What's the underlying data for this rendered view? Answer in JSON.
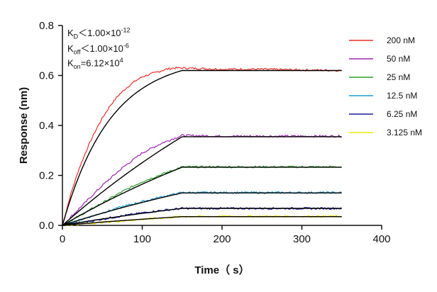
{
  "chart_data": {
    "type": "line",
    "xlabel": "Time（ s）",
    "ylabel": "Response (nm)",
    "xlim": [
      0,
      400
    ],
    "ylim": [
      0,
      0.8
    ],
    "x_ticks": [
      0,
      100,
      200,
      300,
      400
    ],
    "y_ticks": [
      0.0,
      0.2,
      0.4,
      0.6,
      0.8
    ],
    "x_tick_labels": [
      "0",
      "100",
      "200",
      "300",
      "400"
    ],
    "y_tick_labels": [
      "0.0",
      "0.2",
      "0.4",
      "0.6",
      "0.8"
    ],
    "legend_position": "right",
    "grid": false,
    "association_end_s": 150,
    "end_time_s": 350,
    "fit_color": "#000000",
    "series": [
      {
        "name": "200 nM",
        "color": "#e8302a",
        "plateau": 0.625,
        "fit_at_150s": 0.62,
        "points": [
          [
            0,
            0
          ],
          [
            10,
            0.12
          ],
          [
            20,
            0.22
          ],
          [
            30,
            0.3
          ],
          [
            40,
            0.37
          ],
          [
            50,
            0.43
          ],
          [
            60,
            0.48
          ],
          [
            70,
            0.52
          ],
          [
            80,
            0.55
          ],
          [
            90,
            0.575
          ],
          [
            100,
            0.595
          ],
          [
            110,
            0.605
          ],
          [
            120,
            0.615
          ],
          [
            130,
            0.625
          ],
          [
            140,
            0.63
          ],
          [
            150,
            0.63
          ],
          [
            200,
            0.625
          ],
          [
            250,
            0.625
          ],
          [
            300,
            0.622
          ],
          [
            350,
            0.62
          ]
        ]
      },
      {
        "name": "50 nM",
        "color": "#9b27b0",
        "plateau": 0.357,
        "fit_at_150s": 0.355,
        "points": [
          [
            0,
            0
          ],
          [
            25,
            0.08
          ],
          [
            50,
            0.16
          ],
          [
            75,
            0.23
          ],
          [
            100,
            0.29
          ],
          [
            125,
            0.33
          ],
          [
            150,
            0.36
          ],
          [
            200,
            0.357
          ],
          [
            250,
            0.357
          ],
          [
            300,
            0.357
          ],
          [
            350,
            0.357
          ]
        ]
      },
      {
        "name": "25 nM",
        "color": "#2ca02c",
        "plateau": 0.234,
        "fit_at_150s": 0.233,
        "points": [
          [
            0,
            0
          ],
          [
            25,
            0.045
          ],
          [
            50,
            0.09
          ],
          [
            75,
            0.135
          ],
          [
            100,
            0.175
          ],
          [
            125,
            0.205
          ],
          [
            150,
            0.234
          ],
          [
            200,
            0.234
          ],
          [
            250,
            0.234
          ],
          [
            300,
            0.234
          ],
          [
            350,
            0.234
          ]
        ]
      },
      {
        "name": "12.5 nM",
        "color": "#1f9bcf",
        "plateau": 0.131,
        "fit_at_150s": 0.13,
        "points": [
          [
            0,
            0
          ],
          [
            25,
            0.025
          ],
          [
            50,
            0.05
          ],
          [
            75,
            0.075
          ],
          [
            100,
            0.095
          ],
          [
            125,
            0.115
          ],
          [
            150,
            0.131
          ],
          [
            200,
            0.131
          ],
          [
            250,
            0.131
          ],
          [
            300,
            0.131
          ],
          [
            350,
            0.131
          ]
        ]
      },
      {
        "name": "6.25 nM",
        "color": "#1c1c9c",
        "plateau": 0.068,
        "fit_at_150s": 0.068,
        "points": [
          [
            0,
            0
          ],
          [
            25,
            0.012
          ],
          [
            50,
            0.025
          ],
          [
            75,
            0.038
          ],
          [
            100,
            0.05
          ],
          [
            125,
            0.06
          ],
          [
            150,
            0.068
          ],
          [
            200,
            0.068
          ],
          [
            250,
            0.068
          ],
          [
            300,
            0.068
          ],
          [
            350,
            0.068
          ]
        ]
      },
      {
        "name": "3.125 nM",
        "color": "#f2e600",
        "plateau": 0.036,
        "fit_at_150s": 0.035,
        "points": [
          [
            0,
            0
          ],
          [
            25,
            0.006
          ],
          [
            50,
            0.012
          ],
          [
            75,
            0.018
          ],
          [
            100,
            0.024
          ],
          [
            125,
            0.03
          ],
          [
            150,
            0.035
          ],
          [
            200,
            0.036
          ],
          [
            250,
            0.036
          ],
          [
            300,
            0.036
          ],
          [
            350,
            0.036
          ]
        ]
      }
    ]
  },
  "kinetics": {
    "kd_label": "K",
    "kd_sub": "D",
    "kd_sym": "＜",
    "kd_mant": "1.00×10",
    "kd_exp": "-12",
    "koff_label": "K",
    "koff_sub": "off",
    "koff_sym": "＜",
    "koff_mant": "1.00×10",
    "koff_exp": "-6",
    "kon_label": "K",
    "kon_sub": "on",
    "kon_sym": "=",
    "kon_mant": "6.12×10",
    "kon_exp": "4"
  }
}
